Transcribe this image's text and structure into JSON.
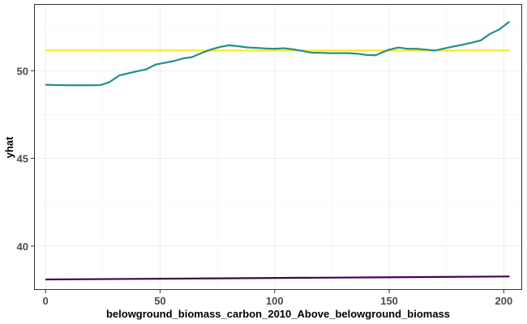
{
  "chart_data": {
    "type": "line",
    "xlabel": "belowground_biomass_carbon_2010_Above_belowground_biomass",
    "ylabel": "yhat",
    "xlim": [
      -5,
      208
    ],
    "ylim": [
      37.5,
      53.8
    ],
    "x_ticks": [
      0,
      50,
      100,
      150,
      200
    ],
    "y_ticks": [
      40,
      45,
      50
    ],
    "grid": true,
    "legend": "none",
    "series": [
      {
        "color": "#fde725",
        "x": [
          0,
          202.5
        ],
        "y": [
          51.15,
          51.15
        ]
      },
      {
        "color": "#21908c",
        "x": [
          0,
          5,
          10,
          15,
          20,
          24,
          28,
          32,
          36,
          40,
          44,
          48,
          52,
          56,
          60,
          64,
          68,
          72,
          76,
          80,
          84,
          88,
          92,
          96,
          100,
          104,
          108,
          112,
          116,
          120,
          124,
          128,
          132,
          136,
          140,
          144,
          148,
          150,
          154,
          158,
          162,
          166,
          170,
          174,
          178,
          182,
          186,
          190,
          194,
          198,
          202.5
        ],
        "y": [
          49.2,
          49.18,
          49.17,
          49.17,
          49.17,
          49.18,
          49.35,
          49.72,
          49.85,
          49.97,
          50.08,
          50.35,
          50.45,
          50.55,
          50.7,
          50.78,
          51.0,
          51.2,
          51.35,
          51.45,
          51.4,
          51.33,
          51.3,
          51.27,
          51.25,
          51.28,
          51.22,
          51.13,
          51.03,
          51.02,
          51.0,
          51.0,
          51.0,
          50.97,
          50.9,
          50.88,
          51.1,
          51.2,
          51.32,
          51.25,
          51.25,
          51.2,
          51.15,
          51.27,
          51.38,
          51.48,
          51.6,
          51.73,
          52.1,
          52.35,
          52.8
        ]
      },
      {
        "color": "#440154",
        "x": [
          0,
          202.5
        ],
        "y": [
          38.1,
          38.27
        ]
      }
    ]
  }
}
